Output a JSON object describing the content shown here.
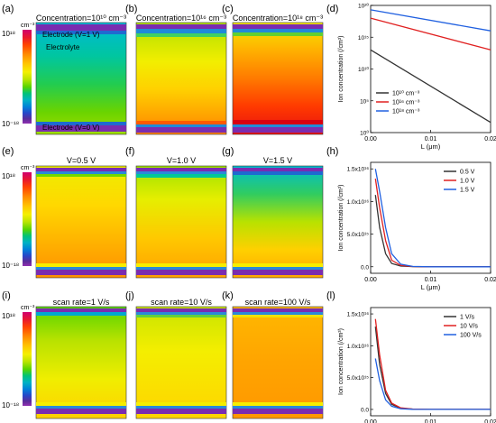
{
  "panel_labels": [
    "(a)",
    "(b)",
    "(c)",
    "(d)",
    "(e)",
    "(f)",
    "(g)",
    "(h)",
    "(i)",
    "(j)",
    "(k)",
    "(l)"
  ],
  "colorbar": {
    "unit": "cm⁻³",
    "top_label": "10¹⁸",
    "bottom_label": "10⁻¹⁸",
    "colors": [
      "#d1006f",
      "#e8182f",
      "#ff4400",
      "#ff8a00",
      "#ffc400",
      "#f4f000",
      "#b9e400",
      "#56d400",
      "#00c27a",
      "#00b2c4",
      "#0082d8",
      "#2846c8",
      "#5a2c9a",
      "#9030b0"
    ]
  },
  "row1": {
    "titles": [
      "Concentration=10¹⁰ cm⁻³",
      "Concentration=10¹⁶ cm⁻³",
      "Concentration=10¹⁸ cm⁻³"
    ],
    "annotations": {
      "top_electrode": "Electrode (V=1 V)",
      "electrolyte": "Electrolyte",
      "bottom_electrode": "Electrode (V=0 V)"
    }
  },
  "row2": {
    "titles": [
      "V=0.5 V",
      "V=1.0 V",
      "V=1.5 V"
    ]
  },
  "row3": {
    "titles": [
      "scan rate=1 V/s",
      "scan rate=10 V/s",
      "scan rate=100 V/s"
    ]
  },
  "chart_data": [
    {
      "panel": "(d)",
      "type": "line",
      "xlabel": "L (μm)",
      "ylabel": "Ion concentration (/cm³)",
      "xlim": [
        0,
        0.02
      ],
      "ylim": [
        1,
        1e+20
      ],
      "yscale": "log",
      "xticks": [
        "0.00",
        "0.01",
        "0.02"
      ],
      "yticks": [
        "10⁰",
        "10⁵",
        "10¹⁰",
        "10¹⁵",
        "10²⁰"
      ],
      "legend_position": "bottom-left",
      "series": [
        {
          "name": "10¹⁰ cm⁻³",
          "color": "#333333",
          "x": [
            0,
            0.02
          ],
          "y": [
            10000000000000.0,
            40.0
          ]
        },
        {
          "name": "10¹⁶ cm⁻³",
          "color": "#e02020",
          "x": [
            0,
            0.02
          ],
          "y": [
            1e+18,
            10000000000000.0
          ]
        },
        {
          "name": "10¹⁸ cm⁻³",
          "color": "#2060e0",
          "x": [
            0,
            0.02
          ],
          "y": [
            2e+19,
            1e+16
          ]
        }
      ]
    },
    {
      "panel": "(h)",
      "type": "line",
      "xlabel": "L (μm)",
      "ylabel": "Ion concentration (/cm³)",
      "xlim": [
        0,
        0.02
      ],
      "ylim": [
        -1000000000000000.0,
        1.6e+16
      ],
      "xticks": [
        "0.00",
        "0.01",
        "0.02"
      ],
      "yticks": [
        "0.0",
        "5.0x10¹⁵",
        "1.0x10¹⁶",
        "1.5x10¹⁶"
      ],
      "legend_position": "top-right",
      "series": [
        {
          "name": "0.5 V",
          "color": "#333333",
          "x": [
            0.0008,
            0.0015,
            0.0025,
            0.0035,
            0.005,
            0.007,
            0.01,
            0.02
          ],
          "y": [
            1.1e+16,
            6000000000000000.0,
            2000000000000000.0,
            500000000000000.0,
            100000000000000.0,
            20000000000000.0,
            0,
            0
          ]
        },
        {
          "name": "1.0 V",
          "color": "#e02020",
          "x": [
            0.0008,
            0.0015,
            0.0025,
            0.0035,
            0.005,
            0.007,
            0.01,
            0.02
          ],
          "y": [
            1.35e+16,
            9000000000000000.0,
            4000000000000000.0,
            1000000000000000.0,
            200000000000000.0,
            30000000000000.0,
            0,
            0
          ]
        },
        {
          "name": "1.5 V",
          "color": "#2060e0",
          "x": [
            0.0008,
            0.0015,
            0.0025,
            0.0035,
            0.005,
            0.007,
            0.01,
            0.02
          ],
          "y": [
            1.5e+16,
            1.15e+16,
            6000000000000000.0,
            2000000000000000.0,
            400000000000000.0,
            50000000000000.0,
            0,
            0
          ]
        }
      ]
    },
    {
      "panel": "(l)",
      "type": "line",
      "xlabel": "L (μm)",
      "ylabel": "Ion concentration (/cm³)",
      "xlim": [
        0,
        0.02
      ],
      "ylim": [
        -1000000000000000.0,
        1.6e+16
      ],
      "xticks": [
        "0.00",
        "0.01",
        "0.02"
      ],
      "yticks": [
        "0.0",
        "5.0x10¹⁵",
        "1.0x10¹⁶",
        "1.5x10¹⁶"
      ],
      "legend_position": "top-right",
      "series": [
        {
          "name": "1 V/s",
          "color": "#333333",
          "x": [
            0.0008,
            0.0015,
            0.0025,
            0.0035,
            0.005,
            0.007,
            0.01,
            0.02
          ],
          "y": [
            1.3e+16,
            7000000000000000.0,
            2500000000000000.0,
            800000000000000.0,
            200000000000000.0,
            50000000000000.0,
            0,
            0
          ]
        },
        {
          "name": "10 V/s",
          "color": "#e02020",
          "x": [
            0.0008,
            0.0015,
            0.0025,
            0.0035,
            0.005,
            0.007,
            0.01,
            0.02
          ],
          "y": [
            1.42e+16,
            8500000000000000.0,
            3000000000000000.0,
            1000000000000000.0,
            250000000000000.0,
            60000000000000.0,
            0,
            0
          ]
        },
        {
          "name": "100 V/s",
          "color": "#2060e0",
          "x": [
            0.0008,
            0.0015,
            0.0025,
            0.0035,
            0.005,
            0.007,
            0.01,
            0.02
          ],
          "y": [
            8000000000000000.0,
            4500000000000000.0,
            1500000000000000.0,
            500000000000000.0,
            100000000000000.0,
            20000000000000.0,
            0,
            0
          ]
        }
      ]
    }
  ]
}
